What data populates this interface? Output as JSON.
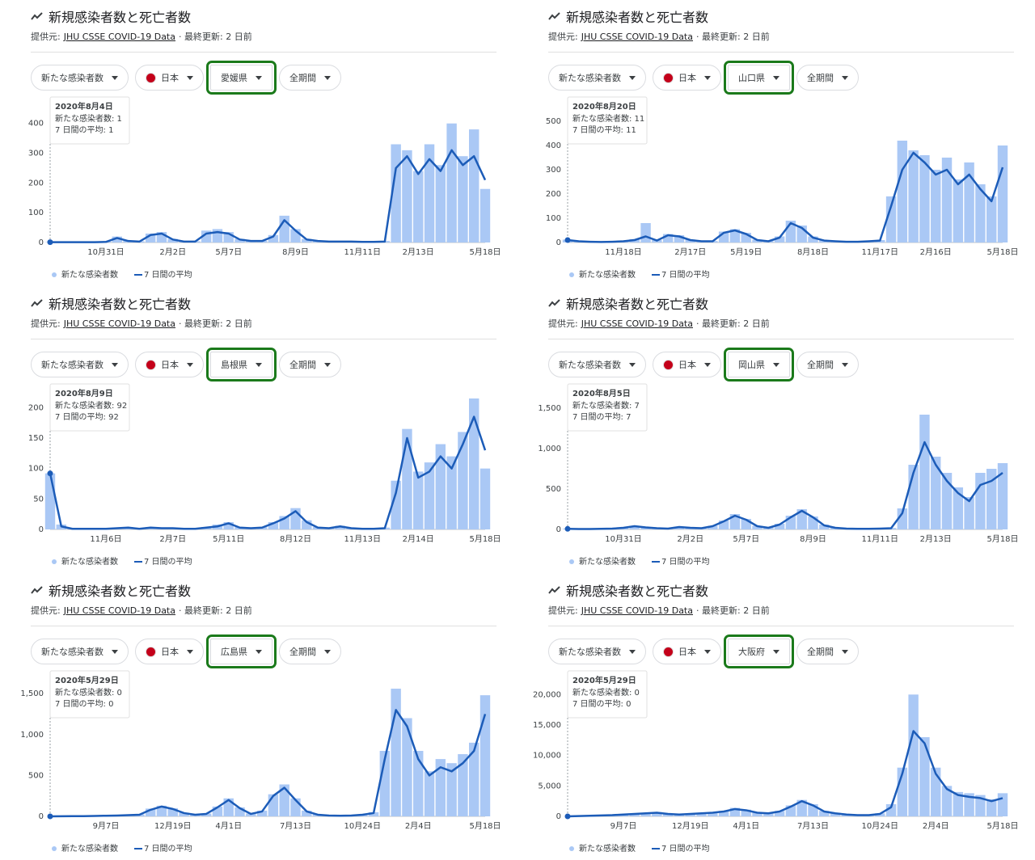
{
  "chart_data": [
    {
      "type": "bar",
      "title": "新規感染者数と死亡者数",
      "source": {
        "label": "提供元:",
        "link": "JHU CSSE COVID-19 Data",
        "updated": "· 最終更新: 2 日前"
      },
      "filters": [
        "新たな感染者数",
        "日本",
        "愛媛県",
        "全期間"
      ],
      "tooltip": {
        "date": "2020年8月4日",
        "lines": [
          "新たな感染者数: 1",
          "7 日間の平均: 1"
        ]
      },
      "categories": [
        null,
        null,
        null,
        null,
        null,
        "10月31日",
        null,
        null,
        null,
        null,
        null,
        "2月2日",
        null,
        null,
        null,
        null,
        "5月7日",
        null,
        null,
        null,
        null,
        null,
        "8月9日",
        null,
        null,
        null,
        null,
        null,
        "11月11日",
        null,
        null,
        null,
        null,
        "2月13日",
        null,
        null,
        null,
        null,
        null,
        "5月18日"
      ],
      "ylim": [
        0,
        440
      ],
      "yticks": [
        0,
        100,
        200,
        300,
        400
      ],
      "grid": false,
      "series": [
        {
          "name": "新たな感染者数",
          "type": "bar",
          "color": "#aac8f5",
          "values": [
            1,
            1,
            2,
            1,
            2,
            3,
            20,
            6,
            4,
            30,
            35,
            12,
            4,
            4,
            40,
            45,
            35,
            12,
            6,
            6,
            25,
            90,
            45,
            12,
            6,
            4,
            4,
            4,
            3,
            3,
            5,
            330,
            310,
            240,
            330,
            260,
            400,
            290,
            380,
            180
          ]
        },
        {
          "name": "7 日間の平均",
          "type": "line",
          "color": "#1c5cb8",
          "values": [
            1,
            1,
            1,
            1,
            1,
            2,
            15,
            5,
            3,
            25,
            30,
            10,
            3,
            3,
            30,
            35,
            30,
            10,
            5,
            5,
            20,
            75,
            40,
            10,
            5,
            3,
            3,
            3,
            2,
            2,
            3,
            250,
            290,
            230,
            280,
            240,
            310,
            260,
            290,
            210
          ]
        }
      ]
    },
    {
      "type": "bar",
      "title": "新規感染者数と死亡者数",
      "source": {
        "label": "提供元:",
        "link": "JHU CSSE COVID-19 Data",
        "updated": "· 最終更新: 2 日前"
      },
      "filters": [
        "新たな感染者数",
        "日本",
        "山口県",
        "全期間"
      ],
      "tooltip": {
        "date": "2020年8月20日",
        "lines": [
          "新たな感染者数: 11",
          "7 日間の平均: 11"
        ]
      },
      "categories": [
        null,
        null,
        null,
        null,
        null,
        "11月18日",
        null,
        null,
        null,
        null,
        null,
        "2月17日",
        null,
        null,
        null,
        null,
        "5月19日",
        null,
        null,
        null,
        null,
        null,
        "8月18日",
        null,
        null,
        null,
        null,
        null,
        "11月17日",
        null,
        null,
        null,
        null,
        "2月16日",
        null,
        null,
        null,
        null,
        null,
        "5月18日"
      ],
      "ylim": [
        0,
        540
      ],
      "yticks": [
        0,
        100,
        200,
        300,
        400,
        500
      ],
      "grid": false,
      "series": [
        {
          "name": "新たな感染者数",
          "type": "bar",
          "color": "#aac8f5",
          "values": [
            12,
            6,
            4,
            3,
            4,
            6,
            14,
            80,
            10,
            35,
            30,
            12,
            6,
            6,
            45,
            55,
            40,
            12,
            6,
            25,
            90,
            70,
            25,
            10,
            6,
            4,
            4,
            6,
            10,
            190,
            420,
            380,
            360,
            300,
            350,
            260,
            330,
            240,
            190,
            400
          ]
        },
        {
          "name": "7 日間の平均",
          "type": "line",
          "color": "#1c5cb8",
          "values": [
            10,
            5,
            3,
            2,
            3,
            5,
            10,
            25,
            8,
            30,
            25,
            10,
            5,
            5,
            40,
            50,
            35,
            10,
            5,
            20,
            80,
            60,
            20,
            8,
            5,
            3,
            3,
            5,
            8,
            150,
            300,
            370,
            330,
            280,
            300,
            240,
            280,
            220,
            170,
            310
          ]
        }
      ]
    },
    {
      "type": "bar",
      "title": "新規感染者数と死亡者数",
      "source": {
        "label": "提供元:",
        "link": "JHU CSSE COVID-19 Data",
        "updated": "· 最終更新: 2 日前"
      },
      "filters": [
        "新たな感染者数",
        "日本",
        "島根県",
        "全期間"
      ],
      "tooltip": {
        "date": "2020年8月9日",
        "lines": [
          "新たな感染者数: 92",
          "7 日間の平均: 92"
        ]
      },
      "categories": [
        null,
        null,
        null,
        null,
        null,
        "11月6日",
        null,
        null,
        null,
        null,
        null,
        "2月7日",
        null,
        null,
        null,
        null,
        "5月11日",
        null,
        null,
        null,
        null,
        null,
        "8月12日",
        null,
        null,
        null,
        null,
        null,
        "11月13日",
        null,
        null,
        null,
        null,
        "2月14日",
        null,
        null,
        null,
        null,
        null,
        "5月18日"
      ],
      "ylim": [
        0,
        215
      ],
      "yticks": [
        0,
        50,
        100,
        150,
        200
      ],
      "grid": false,
      "series": [
        {
          "name": "新たな感染者数",
          "type": "bar",
          "color": "#aac8f5",
          "values": [
            92,
            8,
            2,
            1,
            2,
            1,
            3,
            4,
            2,
            4,
            3,
            3,
            1,
            2,
            4,
            8,
            12,
            4,
            3,
            4,
            12,
            22,
            35,
            15,
            4,
            3,
            6,
            3,
            2,
            1,
            3,
            80,
            165,
            95,
            110,
            140,
            120,
            160,
            215,
            100
          ]
        },
        {
          "name": "7 日間の平均",
          "type": "line",
          "color": "#1c5cb8",
          "values": [
            92,
            5,
            1,
            1,
            1,
            1,
            2,
            3,
            1,
            3,
            2,
            2,
            1,
            1,
            3,
            5,
            10,
            3,
            2,
            3,
            10,
            18,
            30,
            12,
            3,
            2,
            5,
            2,
            1,
            1,
            2,
            60,
            150,
            85,
            95,
            120,
            100,
            140,
            185,
            130
          ]
        }
      ]
    },
    {
      "type": "bar",
      "title": "新規感染者数と死亡者数",
      "source": {
        "label": "提供元:",
        "link": "JHU CSSE COVID-19 Data",
        "updated": "· 最終更新: 2 日前"
      },
      "filters": [
        "新たな感染者数",
        "日本",
        "岡山県",
        "全期間"
      ],
      "tooltip": {
        "date": "2020年8月5日",
        "lines": [
          "新たな感染者数: 7",
          "7 日間の平均: 7"
        ]
      },
      "categories": [
        null,
        null,
        null,
        null,
        null,
        "10月31日",
        null,
        null,
        null,
        null,
        null,
        "2月2日",
        null,
        null,
        null,
        null,
        "5月7日",
        null,
        null,
        null,
        null,
        null,
        "8月9日",
        null,
        null,
        null,
        null,
        null,
        "11月11日",
        null,
        null,
        null,
        null,
        "2月13日",
        null,
        null,
        null,
        null,
        null,
        "5月18日"
      ],
      "ylim": [
        0,
        1620
      ],
      "yticks": [
        0,
        500,
        {
          "value": 1000,
          "label": "1,000"
        },
        {
          "value": 1500,
          "label": "1,500"
        }
      ],
      "grid": false,
      "series": [
        {
          "name": "新たな感染者数",
          "type": "bar",
          "color": "#aac8f5",
          "values": [
            8,
            6,
            6,
            10,
            12,
            25,
            45,
            30,
            18,
            12,
            35,
            25,
            18,
            45,
            110,
            190,
            130,
            45,
            25,
            70,
            170,
            250,
            160,
            60,
            25,
            12,
            10,
            10,
            12,
            18,
            260,
            800,
            1420,
            900,
            700,
            520,
            400,
            700,
            750,
            820
          ]
        },
        {
          "name": "7 日間の平均",
          "type": "line",
          "color": "#1c5cb8",
          "values": [
            7,
            5,
            5,
            8,
            10,
            20,
            40,
            25,
            15,
            10,
            30,
            20,
            15,
            40,
            100,
            170,
            120,
            40,
            20,
            60,
            150,
            230,
            150,
            50,
            20,
            10,
            8,
            8,
            10,
            15,
            200,
            700,
            1080,
            800,
            600,
            450,
            350,
            550,
            600,
            700
          ]
        }
      ]
    },
    {
      "type": "bar",
      "title": "新規感染者数と死亡者数",
      "source": {
        "label": "提供元:",
        "link": "JHU CSSE COVID-19 Data",
        "updated": "· 最終更新: 2 日前"
      },
      "filters": [
        "新たな感染者数",
        "日本",
        "広島県",
        "全期間"
      ],
      "tooltip": {
        "date": "2020年5月29日",
        "lines": [
          "新たな感染者数: 0",
          "7 日間の平均: 0"
        ]
      },
      "categories": [
        null,
        null,
        null,
        null,
        null,
        "9月7日",
        null,
        null,
        null,
        null,
        null,
        "12月19日",
        null,
        null,
        null,
        null,
        "4月1日",
        null,
        null,
        null,
        null,
        null,
        "7月13日",
        null,
        null,
        null,
        null,
        null,
        "10月24日",
        null,
        null,
        null,
        null,
        "2月4日",
        null,
        null,
        null,
        null,
        null,
        "5月18日"
      ],
      "ylim": [
        0,
        1600
      ],
      "yticks": [
        0,
        500,
        {
          "value": 1000,
          "label": "1,000"
        },
        {
          "value": 1500,
          "label": "1,500"
        }
      ],
      "grid": false,
      "series": [
        {
          "name": "新たな感染者数",
          "type": "bar",
          "color": "#aac8f5",
          "values": [
            0,
            2,
            3,
            4,
            6,
            10,
            12,
            18,
            25,
            95,
            130,
            100,
            45,
            25,
            35,
            120,
            220,
            110,
            35,
            70,
            270,
            390,
            220,
            70,
            25,
            12,
            10,
            12,
            25,
            50,
            800,
            1560,
            1200,
            800,
            550,
            700,
            650,
            760,
            900,
            1480
          ]
        },
        {
          "name": "7 日間の平均",
          "type": "line",
          "color": "#1c5cb8",
          "values": [
            0,
            1,
            2,
            3,
            5,
            8,
            10,
            15,
            20,
            80,
            120,
            90,
            40,
            20,
            30,
            110,
            200,
            100,
            30,
            60,
            250,
            350,
            200,
            60,
            20,
            10,
            8,
            10,
            20,
            40,
            700,
            1300,
            1100,
            700,
            500,
            600,
            550,
            650,
            800,
            1250
          ]
        }
      ]
    },
    {
      "type": "bar",
      "title": "新規感染者数と死亡者数",
      "source": {
        "label": "提供元:",
        "link": "JHU CSSE COVID-19 Data",
        "updated": "· 最終更新: 2 日前"
      },
      "filters": [
        "新たな感染者数",
        "日本",
        "大阪府",
        "全期間"
      ],
      "tooltip": {
        "date": "2020年5月29日",
        "lines": [
          "新たな感染者数: 0",
          "7 日間の平均: 0"
        ]
      },
      "categories": [
        null,
        null,
        null,
        null,
        null,
        "9月7日",
        null,
        null,
        null,
        null,
        null,
        "12月19日",
        null,
        null,
        null,
        null,
        "4月1日",
        null,
        null,
        null,
        null,
        null,
        "7月13日",
        null,
        null,
        null,
        null,
        null,
        "10月24日",
        null,
        null,
        null,
        null,
        "2月4日",
        null,
        null,
        null,
        null,
        null,
        "5月18日"
      ],
      "ylim": [
        0,
        21500
      ],
      "yticks": [
        0,
        {
          "value": 5000,
          "label": "5,000"
        },
        {
          "value": 10000,
          "label": "10,000"
        },
        {
          "value": 15000,
          "label": "15,000"
        },
        {
          "value": 20000,
          "label": "20,000"
        }
      ],
      "grid": false,
      "series": [
        {
          "name": "新たな感染者数",
          "type": "bar",
          "color": "#aac8f5",
          "values": [
            0,
            60,
            120,
            180,
            250,
            350,
            450,
            600,
            700,
            450,
            350,
            450,
            600,
            700,
            900,
            1400,
            1100,
            700,
            600,
            900,
            1800,
            2700,
            2000,
            900,
            600,
            350,
            250,
            250,
            500,
            2000,
            8000,
            20000,
            13000,
            8000,
            5000,
            4000,
            3800,
            3500,
            2800,
            3800
          ]
        },
        {
          "name": "7 日間の平均",
          "type": "line",
          "color": "#1c5cb8",
          "values": [
            0,
            50,
            100,
            150,
            200,
            300,
            400,
            500,
            600,
            400,
            300,
            400,
            500,
            600,
            800,
            1200,
            1000,
            600,
            500,
            800,
            1600,
            2500,
            1800,
            800,
            500,
            300,
            200,
            200,
            400,
            1500,
            7000,
            14000,
            12000,
            7000,
            4500,
            3500,
            3200,
            3000,
            2500,
            3000
          ]
        }
      ]
    }
  ]
}
